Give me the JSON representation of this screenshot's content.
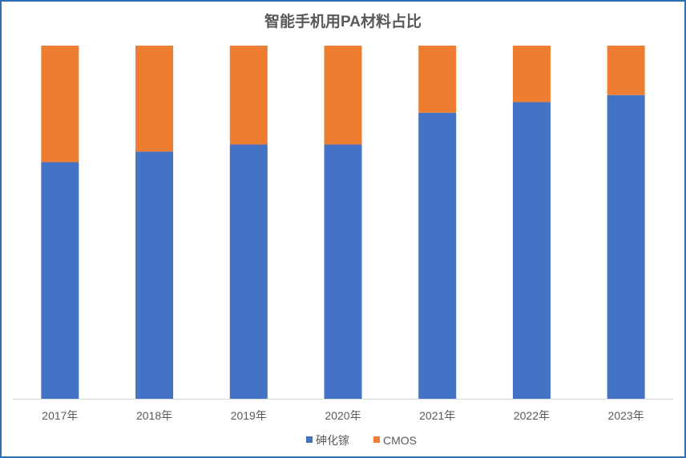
{
  "chart_data": {
    "type": "bar",
    "stacked": true,
    "title": "智能手机用PA材料占比",
    "categories": [
      "2017年",
      "2018年",
      "2019年",
      "2020年",
      "2021年",
      "2022年",
      "2023年"
    ],
    "series": [
      {
        "name": "砷化镓",
        "color": "#4472C4",
        "values": [
          67,
          70,
          72,
          72,
          81,
          84,
          86
        ]
      },
      {
        "name": "CMOS",
        "color": "#ED7D31",
        "values": [
          33,
          30,
          28,
          28,
          19,
          16,
          14
        ]
      }
    ],
    "ylim": [
      0,
      100
    ],
    "grid": false,
    "legend": "bottom"
  }
}
